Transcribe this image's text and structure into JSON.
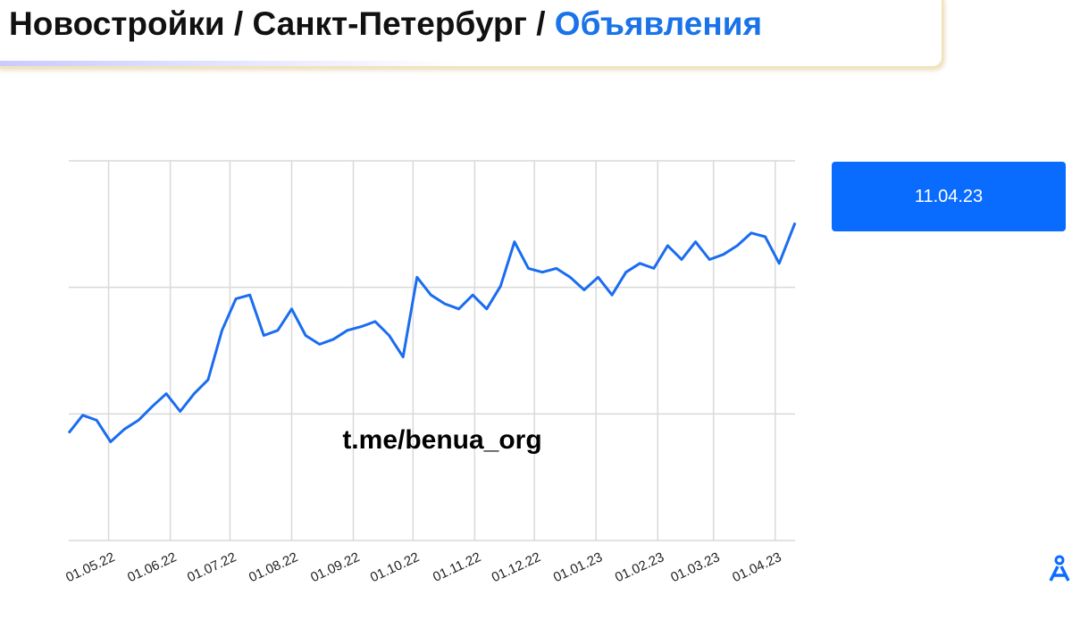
{
  "chart_data": {
    "type": "line",
    "title": "Новостройки / Санкт-Петербург / ",
    "title_highlight": "Объявления",
    "date_button": "11.04.23",
    "watermark": "t.me/benua_org",
    "x": [
      "11.04.22",
      "18.04.22",
      "25.04.22",
      "02.05.22",
      "09.05.22",
      "16.05.22",
      "23.05.22",
      "30.05.22",
      "06.06.22",
      "13.06.22",
      "20.06.22",
      "27.06.22",
      "04.07.22",
      "11.07.22",
      "18.07.22",
      "25.07.22",
      "01.08.22",
      "08.08.22",
      "15.08.22",
      "22.08.22",
      "29.08.22",
      "05.09.22",
      "12.09.22",
      "19.09.22",
      "26.09.22",
      "03.10.22",
      "10.10.22",
      "17.10.22",
      "24.10.22",
      "31.10.22",
      "07.11.22",
      "14.11.22",
      "21.11.22",
      "28.11.22",
      "05.12.22",
      "12.12.22",
      "19.12.22",
      "26.12.22",
      "02.01.23",
      "09.01.23",
      "16.01.23",
      "23.01.23",
      "30.01.23",
      "06.02.23",
      "13.02.23",
      "20.02.23",
      "27.02.23",
      "06.03.23",
      "13.03.23",
      "20.03.23",
      "27.03.23",
      "03.04.23",
      "11.04.23"
    ],
    "values": [
      0.85,
      0.99,
      0.95,
      0.78,
      0.88,
      0.95,
      1.06,
      1.16,
      1.02,
      1.16,
      1.27,
      1.66,
      1.91,
      1.94,
      1.62,
      1.66,
      1.83,
      1.62,
      1.55,
      1.59,
      1.66,
      1.69,
      1.73,
      1.62,
      1.45,
      2.08,
      1.94,
      1.87,
      1.83,
      1.94,
      1.83,
      2.01,
      2.36,
      2.15,
      2.12,
      2.15,
      2.08,
      1.98,
      2.08,
      1.94,
      2.12,
      2.19,
      2.15,
      2.33,
      2.22,
      2.36,
      2.22,
      2.26,
      2.33,
      2.43,
      2.4,
      2.19,
      2.51
    ],
    "color": "#1a6cf0",
    "xlim": [
      "11.04.22",
      "11.04.23"
    ],
    "xticks": [
      "01.05.22",
      "01.06.22",
      "01.07.22",
      "01.08.22",
      "01.09.22",
      "01.10.22",
      "01.11.22",
      "01.12.22",
      "01.01.23",
      "01.02.23",
      "01.03.23",
      "01.04.23"
    ],
    "ylim": [
      0,
      3
    ],
    "ygrid": [
      0,
      1,
      2,
      3
    ],
    "grid": true
  }
}
